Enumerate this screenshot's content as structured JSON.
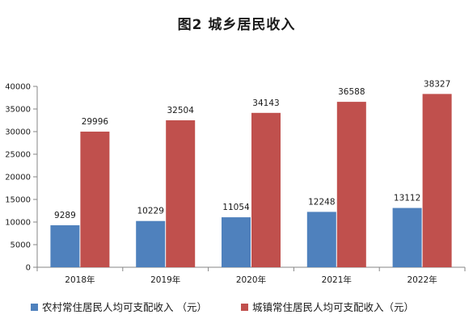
{
  "figure": {
    "title": "图2  城乡居民收入"
  },
  "colors": {
    "rural": "#4f81bd",
    "urban": "#c0504d",
    "axis": "#868686",
    "grid": "#d9d9d9",
    "text": "#1a1a1a"
  },
  "chart_data": {
    "type": "bar",
    "title": "图2  城乡居民收入",
    "categories": [
      "2018年",
      "2019年",
      "2020年",
      "2021年",
      "2022年"
    ],
    "series": [
      {
        "name": "农村常住居民人均可支配收入 （元）",
        "values": [
          9289,
          10229,
          11054,
          12248,
          13112
        ],
        "color": "#4f81bd"
      },
      {
        "name": "城镇常住居民人均可支配收入（元）",
        "values": [
          29996,
          32504,
          34143,
          36588,
          38327
        ],
        "color": "#c0504d"
      }
    ],
    "ylim": [
      0,
      40000
    ],
    "yticks": [
      0,
      5000,
      10000,
      15000,
      20000,
      25000,
      30000,
      35000,
      40000
    ],
    "xlabel": "",
    "ylabel": "",
    "grid": false,
    "legend": "bottom",
    "data_labels": true
  }
}
